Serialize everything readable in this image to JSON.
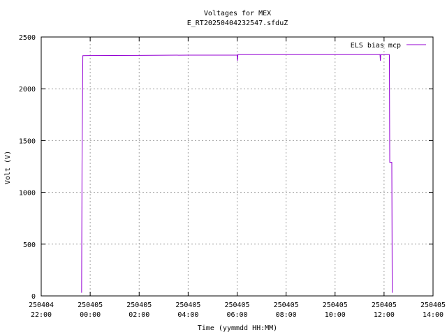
{
  "chart_data": {
    "type": "line",
    "title": "Voltages for MEX",
    "subtitle": "E_RT20250404232547.sfduZ",
    "x_label": "Time (yymmdd HH:MM)",
    "y_label": "Volt (V)",
    "xlim": [
      "250404 22:00",
      "250405 14:00"
    ],
    "xticks": [
      "250404 22:00",
      "250405 00:00",
      "250405 02:00",
      "250405 04:00",
      "250405 06:00",
      "250405 08:00",
      "250405 10:00",
      "250405 12:00",
      "250405 14:00"
    ],
    "ylim": [
      0,
      2500
    ],
    "yticks": [
      0,
      500,
      1000,
      1500,
      2000,
      2500
    ],
    "grid": true,
    "legend": "top-right",
    "x": [
      "250404 23:39",
      "250404 23:40",
      "250404 23:42",
      "250405 02:00",
      "250405 04:00",
      "250405 06:00",
      "250405 06:01",
      "250405 06:02",
      "250405 08:00",
      "250405 11:50",
      "250405 11:51",
      "250405 11:52",
      "250405 12:13",
      "250405 12:14",
      "250405 12:19",
      "250405 12:20"
    ],
    "series": [
      {
        "name": "ELS bias mcp",
        "color": "#9400d3",
        "values": [
          30,
          1280,
          2320,
          2322,
          2325,
          2325,
          2270,
          2330,
          2330,
          2330,
          2270,
          2330,
          2330,
          1290,
          1290,
          30
        ]
      }
    ]
  }
}
